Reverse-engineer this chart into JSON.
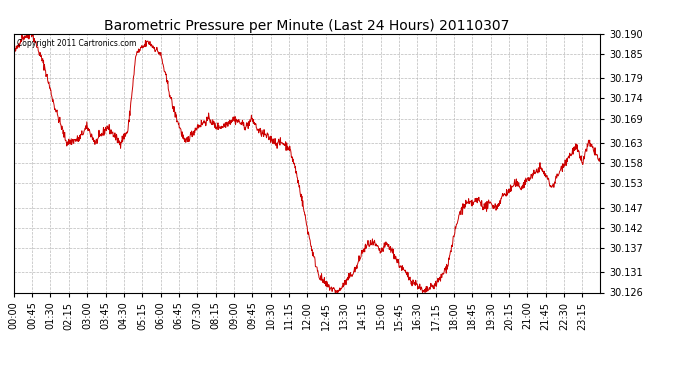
{
  "title": "Barometric Pressure per Minute (Last 24 Hours) 20110307",
  "copyright_text": "Copyright 2011 Cartronics.com",
  "line_color": "#cc0000",
  "background_color": "#ffffff",
  "plot_bg_color": "#ffffff",
  "grid_color": "#bbbbbb",
  "ylim": [
    30.126,
    30.19
  ],
  "yticks": [
    30.126,
    30.131,
    30.137,
    30.142,
    30.147,
    30.153,
    30.158,
    30.163,
    30.169,
    30.174,
    30.179,
    30.185,
    30.19
  ],
  "xtick_labels": [
    "00:00",
    "00:45",
    "01:30",
    "02:15",
    "03:00",
    "03:45",
    "04:30",
    "05:15",
    "06:00",
    "06:45",
    "07:30",
    "08:15",
    "09:00",
    "09:45",
    "10:30",
    "11:15",
    "12:00",
    "12:45",
    "13:30",
    "14:15",
    "15:00",
    "15:45",
    "16:30",
    "17:15",
    "18:00",
    "18:45",
    "19:30",
    "20:15",
    "21:00",
    "21:45",
    "22:30",
    "23:15"
  ],
  "tick_fontsize": 7,
  "title_fontsize": 10
}
